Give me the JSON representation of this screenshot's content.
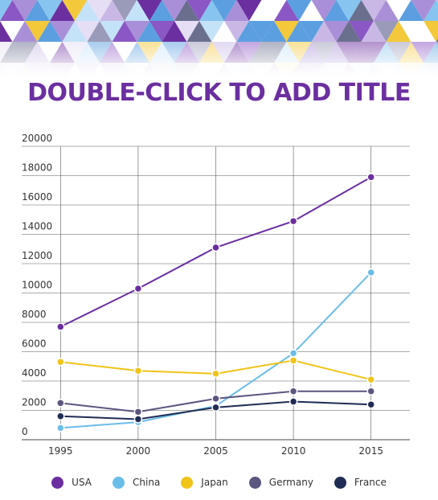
{
  "title": "DOUBLE-CLICK TO ADD TITLE",
  "banner": {
    "palette": [
      "#6b2fa0",
      "#8a57c4",
      "#a98fd8",
      "#c9b8e6",
      "#e6def4",
      "#5b9fe0",
      "#87c4ef",
      "#c4e2f8",
      "#6a6f8e",
      "#9a9bb8",
      "#f3c93b",
      "#ffffff"
    ]
  },
  "chart_data": {
    "type": "line",
    "title": "DOUBLE-CLICK TO ADD TITLE",
    "xlabel": "",
    "ylabel": "",
    "categories": [
      "1995",
      "2000",
      "2005",
      "2010",
      "2015"
    ],
    "ylim": [
      0,
      20000
    ],
    "yticks": [
      "0",
      "2000",
      "4000",
      "6000",
      "8000",
      "10000",
      "12000",
      "14000",
      "16000",
      "18000",
      "20000"
    ],
    "grid": true,
    "legend_position": "bottom",
    "series": [
      {
        "name": "USA",
        "color": "#6b2fa0",
        "values": [
          7700,
          10300,
          13100,
          14900,
          17900
        ]
      },
      {
        "name": "China",
        "color": "#6bbde9",
        "values": [
          800,
          1200,
          2300,
          5900,
          11400
        ]
      },
      {
        "name": "Japan",
        "color": "#f0c419",
        "values": [
          5300,
          4700,
          4500,
          5400,
          4100
        ]
      },
      {
        "name": "Germany",
        "color": "#5b5680",
        "values": [
          2500,
          1900,
          2800,
          3300,
          3300
        ]
      },
      {
        "name": "France",
        "color": "#202c53",
        "values": [
          1600,
          1400,
          2200,
          2600,
          2400
        ]
      }
    ]
  }
}
